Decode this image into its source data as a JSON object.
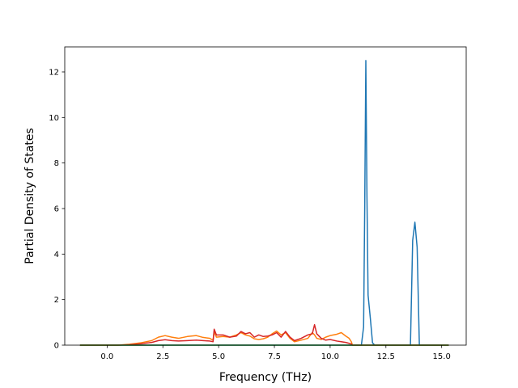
{
  "chart_data": {
    "type": "line",
    "title": "",
    "xlabel": "Frequency (THz)",
    "ylabel": "Partial Density of States",
    "xlim": [
      -1.9,
      16.1
    ],
    "ylim": [
      0,
      13.1
    ],
    "xticks": [
      0.0,
      2.5,
      5.0,
      7.5,
      10.0,
      12.5,
      15.0
    ],
    "xtick_labels": [
      "0.0",
      "2.5",
      "5.0",
      "7.5",
      "10.0",
      "12.5",
      "15.0"
    ],
    "yticks": [
      0,
      2,
      4,
      6,
      8,
      10,
      12
    ],
    "ytick_labels": [
      "0",
      "2",
      "4",
      "6",
      "8",
      "10",
      "12"
    ],
    "grid": false,
    "legend": "none",
    "series": [
      {
        "color": "#1f77b4",
        "x": [
          -1.2,
          11.2,
          11.4,
          11.5,
          11.55,
          11.6,
          11.65,
          11.7,
          11.8,
          11.9,
          12.0,
          13.4,
          13.6,
          13.7,
          13.8,
          13.9,
          14.0,
          15.3
        ],
        "y": [
          0,
          0,
          0,
          0.8,
          6.0,
          12.5,
          6.5,
          2.2,
          1.2,
          0.1,
          0,
          0,
          0,
          4.6,
          5.4,
          4.3,
          0,
          0
        ]
      },
      {
        "color": "#ff7f0e",
        "x": [
          -1.2,
          0.5,
          1.0,
          1.5,
          2.0,
          2.3,
          2.6,
          2.9,
          3.2,
          3.6,
          4.0,
          4.3,
          4.6,
          4.75,
          4.8,
          4.9,
          5.2,
          5.5,
          5.8,
          6.0,
          6.2,
          6.4,
          6.6,
          6.8,
          7.0,
          7.2,
          7.4,
          7.6,
          7.8,
          8.0,
          8.2,
          8.4,
          8.7,
          9.0,
          9.2,
          9.3,
          9.4,
          9.6,
          9.8,
          10.0,
          10.3,
          10.5,
          10.7,
          10.85,
          10.95,
          11.0,
          15.3
        ],
        "y": [
          0,
          0,
          0.04,
          0.1,
          0.2,
          0.35,
          0.42,
          0.35,
          0.3,
          0.38,
          0.42,
          0.34,
          0.3,
          0.22,
          0.6,
          0.35,
          0.38,
          0.35,
          0.45,
          0.55,
          0.45,
          0.4,
          0.28,
          0.25,
          0.28,
          0.35,
          0.5,
          0.62,
          0.45,
          0.55,
          0.3,
          0.15,
          0.22,
          0.3,
          0.55,
          0.45,
          0.3,
          0.25,
          0.35,
          0.42,
          0.48,
          0.55,
          0.4,
          0.3,
          0.15,
          0,
          0
        ]
      },
      {
        "color": "#d62728",
        "x": [
          -1.2,
          0.5,
          1.0,
          1.5,
          2.0,
          2.3,
          2.6,
          2.9,
          3.2,
          3.6,
          4.0,
          4.3,
          4.6,
          4.75,
          4.8,
          4.9,
          5.2,
          5.5,
          5.8,
          6.0,
          6.2,
          6.4,
          6.6,
          6.8,
          7.0,
          7.2,
          7.4,
          7.6,
          7.8,
          8.0,
          8.2,
          8.4,
          8.7,
          9.0,
          9.2,
          9.3,
          9.4,
          9.6,
          9.8,
          10.0,
          10.3,
          10.5,
          10.7,
          10.85,
          10.95,
          11.0,
          15.3
        ],
        "y": [
          0,
          0,
          0.02,
          0.06,
          0.12,
          0.2,
          0.24,
          0.2,
          0.18,
          0.2,
          0.22,
          0.2,
          0.18,
          0.15,
          0.7,
          0.45,
          0.45,
          0.35,
          0.4,
          0.6,
          0.5,
          0.55,
          0.35,
          0.45,
          0.38,
          0.4,
          0.45,
          0.55,
          0.35,
          0.6,
          0.35,
          0.2,
          0.3,
          0.45,
          0.5,
          0.9,
          0.5,
          0.3,
          0.22,
          0.25,
          0.18,
          0.15,
          0.12,
          0.08,
          0.05,
          0,
          0
        ]
      },
      {
        "color": "#2ca02c",
        "x": [
          -1.2,
          15.3
        ],
        "y": [
          0,
          0
        ]
      }
    ]
  }
}
